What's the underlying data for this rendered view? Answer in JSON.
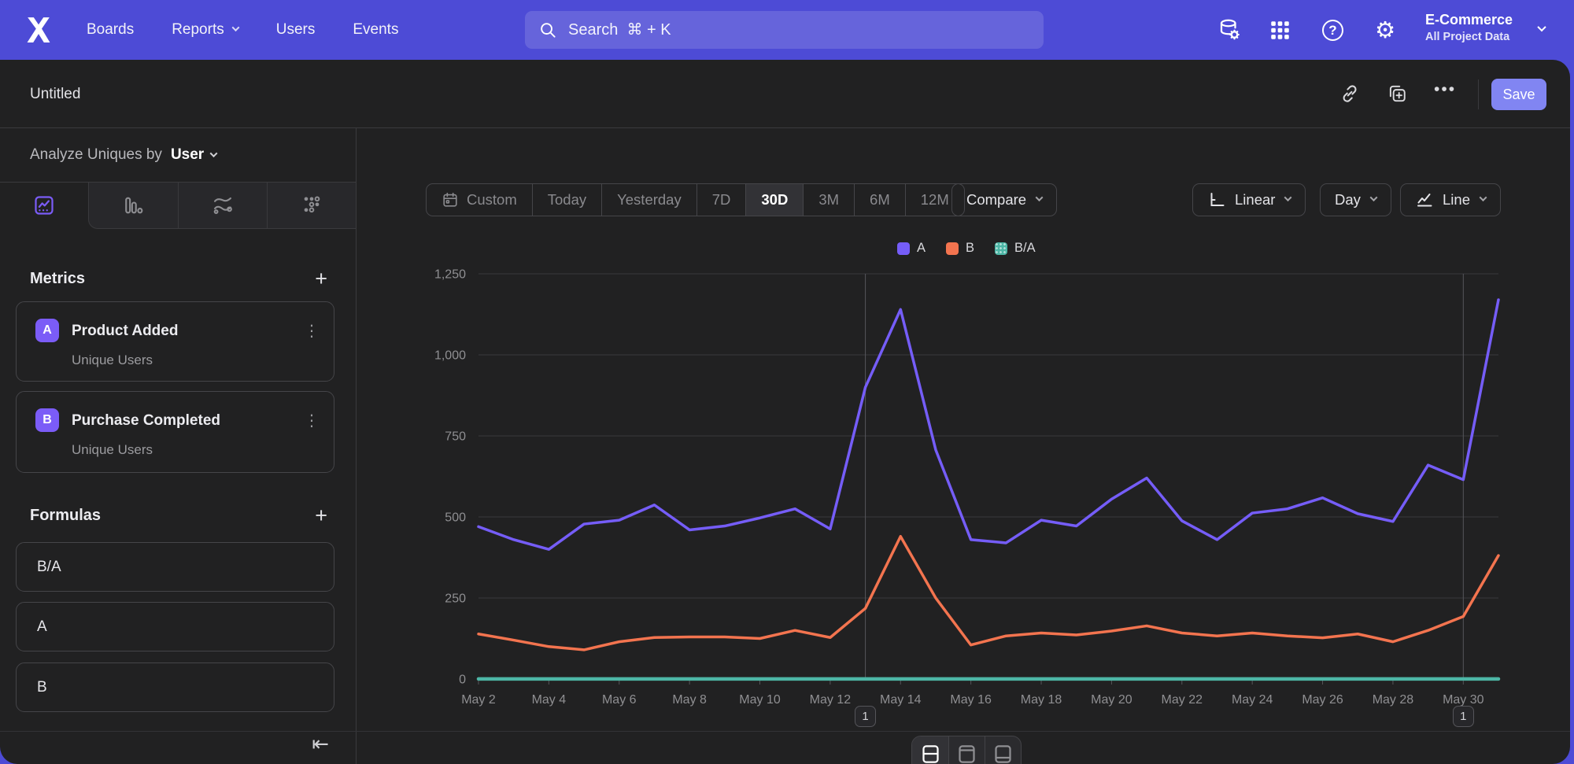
{
  "colors": {
    "nav_bg": "#4d4bd6",
    "panel_bg": "#212122",
    "accent": "#7b5cf7",
    "save_bg": "#8185f2",
    "series_a": "#755df8",
    "series_b": "#f3744f",
    "series_ba": "#4db6a6",
    "grid": "#39393c",
    "axis_text": "#8f8f92"
  },
  "nav": {
    "items": [
      "Boards",
      "Reports",
      "Users",
      "Events"
    ],
    "search_placeholder": "Search  ⌘ + K",
    "help_glyph": "?",
    "gear_glyph": "⚙",
    "project": {
      "name": "E-Commerce",
      "scope": "All Project Data"
    }
  },
  "header": {
    "title": "Untitled",
    "save_label": "Save",
    "dots_glyph": "•••"
  },
  "sidebar": {
    "analyze_label": "Analyze Uniques by",
    "analyze_value": "User",
    "metrics": {
      "title": "Metrics",
      "add_glyph": "+",
      "items": [
        {
          "badge": "A",
          "name": "Product Added",
          "subtitle": "Unique Users",
          "menu_glyph": "⋮"
        },
        {
          "badge": "B",
          "name": "Purchase Completed",
          "subtitle": "Unique Users",
          "menu_glyph": "⋮"
        }
      ]
    },
    "formulas": {
      "title": "Formulas",
      "add_glyph": "+",
      "items": [
        "B/A",
        "A",
        "B"
      ]
    },
    "collapse_glyph": "⇤"
  },
  "toolbar": {
    "ranges": [
      "Custom",
      "Today",
      "Yesterday",
      "7D",
      "30D",
      "3M",
      "6M",
      "12M"
    ],
    "active_range": "30D",
    "compare_label": "Compare",
    "scale_label": "Linear",
    "interval_label": "Day",
    "chart_type_label": "Line"
  },
  "chart_data": {
    "type": "line",
    "x": [
      "May 2",
      "May 3",
      "May 4",
      "May 5",
      "May 6",
      "May 7",
      "May 8",
      "May 9",
      "May 10",
      "May 11",
      "May 12",
      "May 13",
      "May 14",
      "May 15",
      "May 16",
      "May 17",
      "May 18",
      "May 19",
      "May 20",
      "May 21",
      "May 22",
      "May 23",
      "May 24",
      "May 25",
      "May 26",
      "May 27",
      "May 28",
      "May 29",
      "May 30",
      "May 31"
    ],
    "xtick_every": 2,
    "series": [
      {
        "name": "A",
        "color": "#755df8",
        "values": [
          470,
          430,
          400,
          478,
          490,
          537,
          460,
          472,
          497,
          525,
          463,
          900,
          1140,
          707,
          430,
          420,
          490,
          472,
          555,
          620,
          488,
          430,
          512,
          525,
          559,
          510,
          486,
          660,
          615,
          1170
        ]
      },
      {
        "name": "B",
        "color": "#f3744f",
        "values": [
          139,
          120,
          100,
          90,
          115,
          128,
          130,
          130,
          125,
          150,
          128,
          218,
          440,
          250,
          105,
          133,
          142,
          136,
          148,
          164,
          142,
          133,
          142,
          133,
          127,
          139,
          115,
          150,
          193,
          381
        ]
      },
      {
        "name": "B/A",
        "color": "#4db6a6",
        "values": [
          0.3,
          0.28,
          0.25,
          0.19,
          0.23,
          0.24,
          0.28,
          0.28,
          0.25,
          0.29,
          0.28,
          0.24,
          0.39,
          0.35,
          0.24,
          0.32,
          0.29,
          0.29,
          0.27,
          0.26,
          0.29,
          0.31,
          0.28,
          0.25,
          0.23,
          0.27,
          0.24,
          0.23,
          0.31,
          0.33
        ]
      }
    ],
    "ylim": [
      0,
      1250
    ],
    "yticks": [
      0,
      250,
      500,
      750,
      1000,
      1250
    ],
    "ytick_labels": [
      "0",
      "250",
      "500",
      "750",
      "1,000",
      "1,250"
    ],
    "legend_position": "top-center",
    "grid": true,
    "annotations": [
      {
        "x_label": "May 13",
        "label": "1"
      },
      {
        "x_label": "May 30",
        "label": "1"
      }
    ]
  }
}
